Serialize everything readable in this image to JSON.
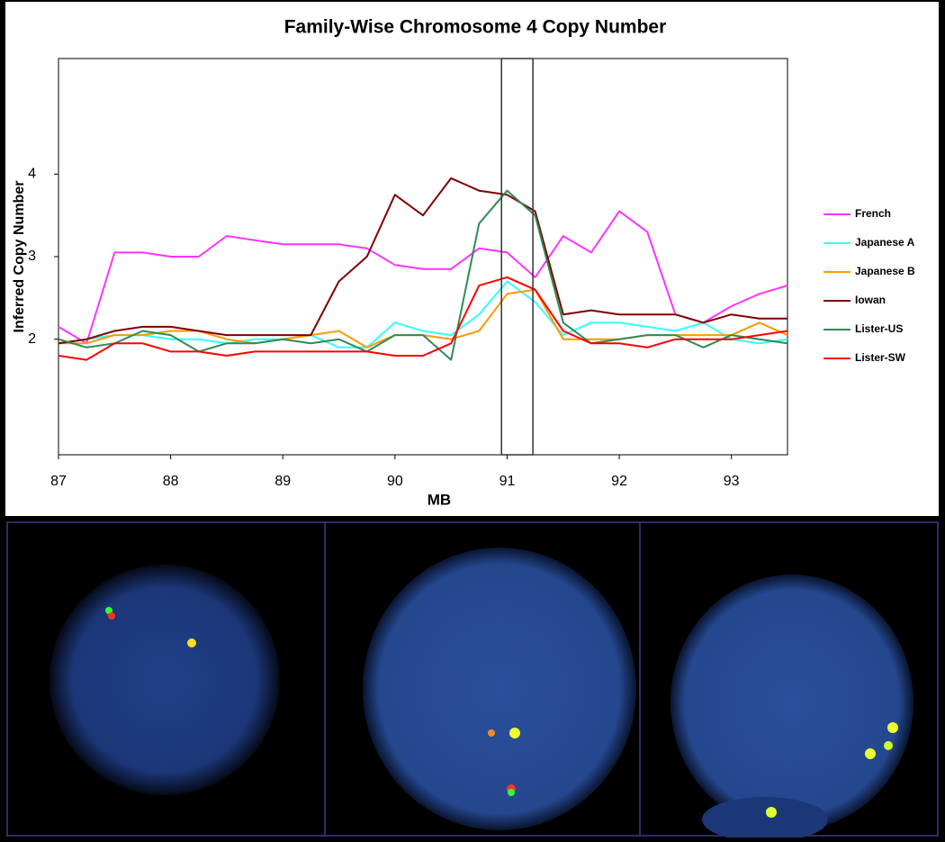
{
  "chart_data": {
    "type": "line",
    "title": "Family-Wise Chromosome 4 Copy Number",
    "x_label": "MB",
    "y_label": "Inferred Copy Number",
    "x": [
      87,
      87.25,
      87.5,
      87.75,
      88,
      88.25,
      88.5,
      88.75,
      89,
      89.25,
      89.5,
      89.75,
      90,
      90.25,
      90.5,
      90.75,
      91,
      91.25,
      91.5,
      91.75,
      92,
      92.25,
      92.5,
      92.75,
      93,
      93.25,
      93.5
    ],
    "series": [
      {
        "name": "French",
        "color": "#ff33ff",
        "values": [
          2.15,
          1.95,
          3.05,
          3.05,
          3.0,
          3.0,
          3.25,
          3.2,
          3.15,
          3.15,
          3.15,
          3.1,
          2.9,
          2.85,
          2.85,
          3.1,
          3.05,
          2.75,
          3.25,
          3.05,
          3.55,
          3.3,
          2.3,
          2.2,
          2.4,
          2.55,
          2.65
        ]
      },
      {
        "name": "Japanese A",
        "color": "#33ffff",
        "values": [
          1.95,
          2.0,
          2.05,
          2.05,
          2.0,
          2.0,
          1.95,
          2.0,
          2.0,
          2.05,
          1.9,
          1.9,
          2.2,
          2.1,
          2.05,
          2.3,
          2.7,
          2.45,
          2.05,
          2.2,
          2.2,
          2.15,
          2.1,
          2.2,
          2.0,
          1.95,
          2.0
        ]
      },
      {
        "name": "Japanese B",
        "color": "#ff9900",
        "values": [
          1.95,
          1.95,
          2.05,
          2.05,
          2.1,
          2.1,
          2.0,
          1.95,
          2.0,
          2.05,
          2.1,
          1.9,
          2.05,
          2.05,
          2.0,
          2.1,
          2.55,
          2.6,
          2.0,
          2.0,
          2.0,
          2.05,
          2.05,
          2.05,
          2.05,
          2.2,
          2.05
        ]
      },
      {
        "name": "Iowan",
        "color": "#800000",
        "values": [
          1.95,
          2.0,
          2.1,
          2.15,
          2.15,
          2.1,
          2.05,
          2.05,
          2.05,
          2.05,
          2.7,
          3.0,
          3.75,
          3.5,
          3.95,
          3.8,
          3.75,
          3.55,
          2.3,
          2.35,
          2.3,
          2.3,
          2.3,
          2.2,
          2.3,
          2.25,
          2.25
        ]
      },
      {
        "name": "Lister-US",
        "color": "#2e8b57",
        "values": [
          2.0,
          1.9,
          1.95,
          2.1,
          2.05,
          1.85,
          1.95,
          1.95,
          2.0,
          1.95,
          2.0,
          1.85,
          2.05,
          2.05,
          1.75,
          3.4,
          3.8,
          3.5,
          2.2,
          1.95,
          2.0,
          2.05,
          2.05,
          1.9,
          2.05,
          2.0,
          1.95
        ]
      },
      {
        "name": "Lister-SW",
        "color": "#ff0000",
        "values": [
          1.8,
          1.75,
          1.95,
          1.95,
          1.85,
          1.85,
          1.8,
          1.85,
          1.85,
          1.85,
          1.85,
          1.85,
          1.8,
          1.8,
          1.95,
          2.65,
          2.75,
          2.6,
          2.1,
          1.95,
          1.95,
          1.9,
          2.0,
          2.0,
          2.0,
          2.05,
          2.1
        ]
      }
    ],
    "xlim": [
      87,
      93.5
    ],
    "xticks": [
      87,
      88,
      89,
      90,
      91,
      92,
      93
    ],
    "ylim": [
      0.6,
      5.4
    ],
    "yticks": [
      2,
      3,
      4
    ],
    "highlight_xlim": [
      90.95,
      91.23
    ],
    "legend": "right"
  }
}
